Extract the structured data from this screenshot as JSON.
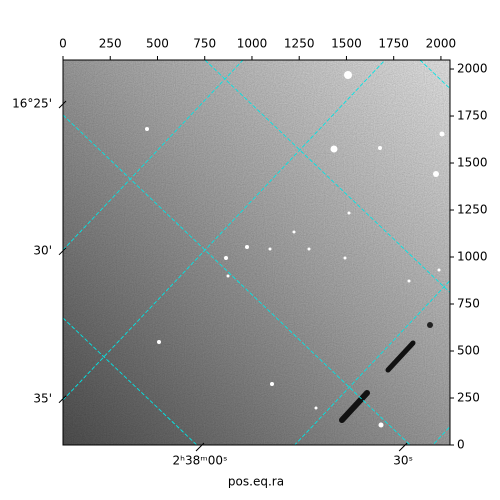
{
  "chart_data": {
    "type": "image",
    "xlabel": "pos.eq.ra",
    "xlim": [
      0,
      2048
    ],
    "ylim": [
      0,
      2048
    ],
    "xticks": [
      0,
      250,
      500,
      750,
      1000,
      1250,
      1500,
      1750,
      2000
    ],
    "yticks": [
      0,
      250,
      500,
      750,
      1000,
      1250,
      1500,
      1750,
      2000
    ],
    "ra_ticks": [
      {
        "value": 725,
        "label": "2ʰ38ᵐ00ˢ"
      },
      {
        "value": 1800,
        "label": "30ˢ"
      }
    ],
    "dec_ticks": [
      {
        "value": 1814,
        "label": "16°25'"
      },
      {
        "value": 1033,
        "label": "30'"
      },
      {
        "value": 246,
        "label": "35'"
      }
    ],
    "grid_color": "#00e5e5"
  }
}
